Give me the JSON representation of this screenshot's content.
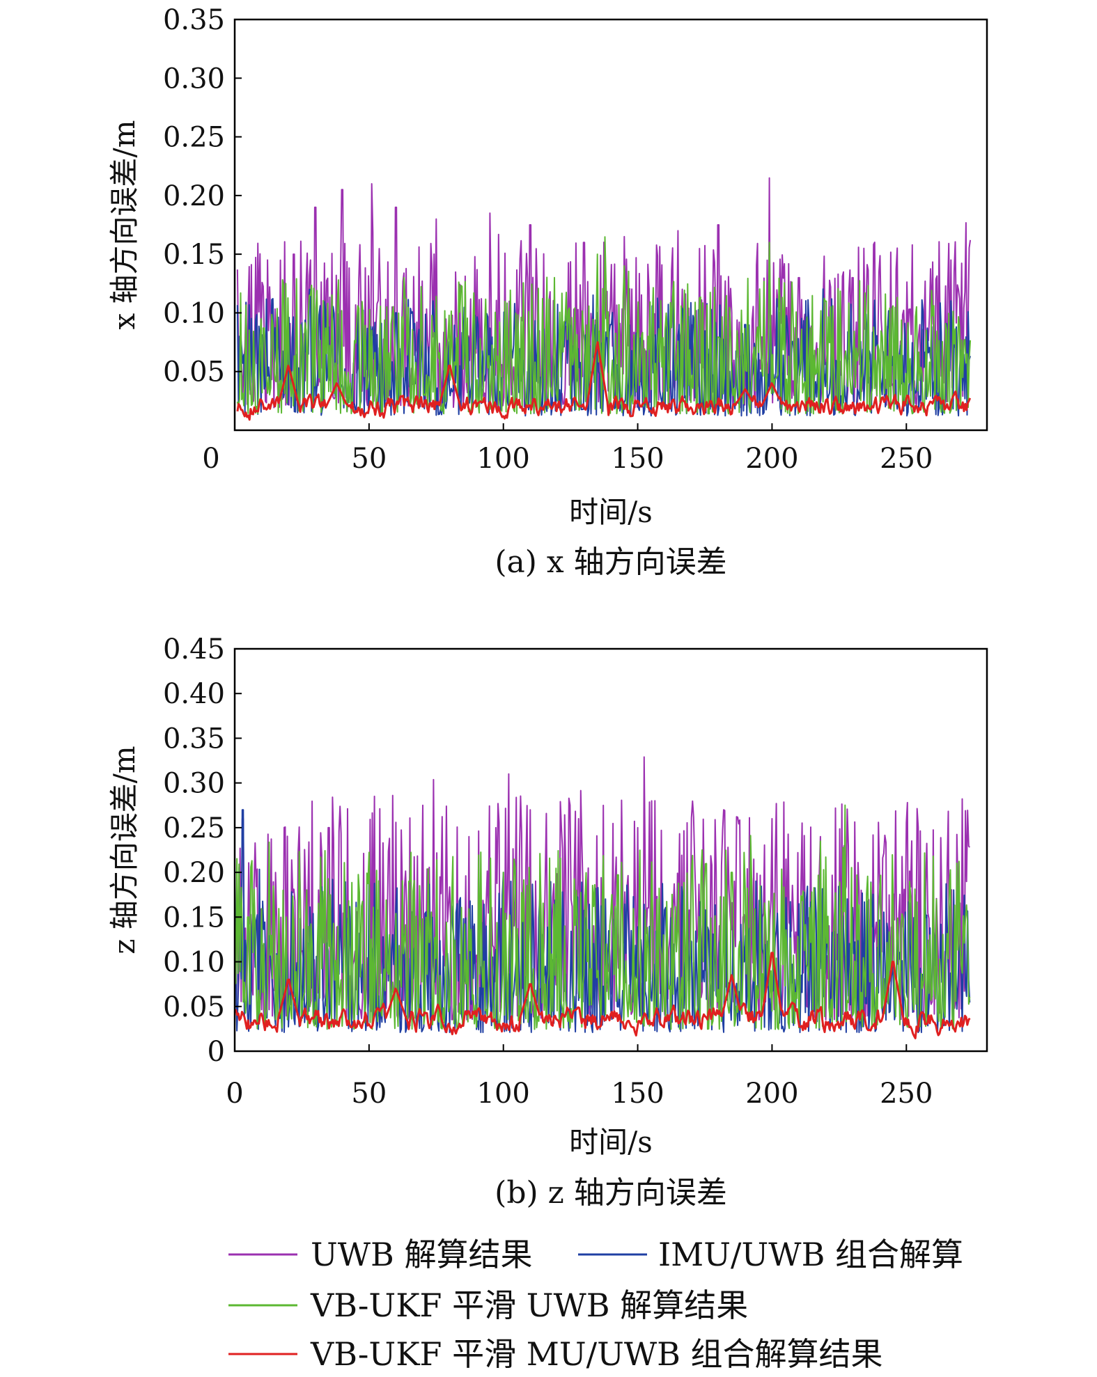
{
  "chart_data": [
    {
      "type": "line",
      "caption": "(a) x 轴方向误差",
      "xlabel": "时间/s",
      "ylabel": "x 轴方向误差/m",
      "xlim": [
        0,
        280
      ],
      "ylim": [
        0,
        0.35
      ],
      "xticks": [
        "0",
        "50",
        "100",
        "150",
        "200",
        "250"
      ],
      "yticks": [
        "0.05",
        "0.10",
        "0.15",
        "0.20",
        "0.25",
        "0.30",
        "0.35"
      ],
      "grid": false,
      "x_range_data": [
        1,
        274
      ],
      "series": [
        {
          "name": "UWB 解算结果",
          "color": "#9b30b0",
          "mean": 0.055,
          "noise": 0.04,
          "peaks": [
            [
              22,
              0.15
            ],
            [
              30,
              0.19
            ],
            [
              40,
              0.205
            ],
            [
              51,
              0.21
            ],
            [
              60,
              0.19
            ],
            [
              75,
              0.18
            ],
            [
              95,
              0.185
            ],
            [
              110,
              0.175
            ],
            [
              130,
              0.16
            ],
            [
              145,
              0.165
            ],
            [
              165,
              0.17
            ],
            [
              180,
              0.175
            ],
            [
              199,
              0.215
            ],
            [
              210,
              0.13
            ],
            [
              230,
              0.13
            ],
            [
              255,
              0.09
            ]
          ]
        },
        {
          "name": "IMU/UWB 组合解算",
          "color": "#1f3fa3",
          "mean": 0.035,
          "noise": 0.03,
          "peaks": [
            [
              2,
              0.08
            ],
            [
              28,
              0.12
            ],
            [
              60,
              0.1
            ],
            [
              140,
              0.09
            ],
            [
              190,
              0.09
            ]
          ]
        },
        {
          "name": "VB-UKF 平滑 UWB 解算结果",
          "color": "#5cb832",
          "mean": 0.04,
          "noise": 0.035,
          "peaks": [
            [
              28,
              0.115
            ],
            [
              63,
              0.13
            ],
            [
              135,
              0.15
            ],
            [
              145,
              0.14
            ],
            [
              199,
              0.16
            ],
            [
              220,
              0.11
            ]
          ]
        },
        {
          "name": "VB-UKF 平滑 MU/UWB 组合解算结果",
          "color": "#e02020",
          "mean": 0.02,
          "noise": 0.008,
          "peaks": [
            [
              20,
              0.055
            ],
            [
              38,
              0.04
            ],
            [
              80,
              0.055
            ],
            [
              135,
              0.075
            ],
            [
              190,
              0.035
            ],
            [
              200,
              0.04
            ]
          ]
        }
      ]
    },
    {
      "type": "line",
      "caption": "(b) z 轴方向误差",
      "xlabel": "时间/s",
      "ylabel": "z 轴方向误差/m",
      "xlim": [
        0,
        280
      ],
      "ylim": [
        0,
        0.45
      ],
      "xticks": [
        "0",
        "50",
        "100",
        "150",
        "200",
        "250"
      ],
      "yticks": [
        "0",
        "0.05",
        "0.10",
        "0.15",
        "0.20",
        "0.25",
        "0.30",
        "0.35",
        "0.40",
        "0.45"
      ],
      "grid": false,
      "x_range_data": [
        0,
        274
      ],
      "series": [
        {
          "name": "UWB 解算结果",
          "color": "#9b30b0",
          "mean": 0.1,
          "noise": 0.07,
          "peaks": [
            [
              3,
              0.26
            ],
            [
              35,
              0.25
            ],
            [
              52,
              0.285
            ],
            [
              70,
              0.275
            ],
            [
              102,
              0.31
            ],
            [
              110,
              0.27
            ],
            [
              128,
              0.26
            ],
            [
              150,
              0.25
            ],
            [
              182,
              0.27
            ],
            [
              200,
              0.26
            ],
            [
              218,
              0.24
            ],
            [
              240,
              0.2
            ]
          ]
        },
        {
          "name": "IMU/UWB 组合解算",
          "color": "#1f3fa3",
          "mean": 0.06,
          "noise": 0.05,
          "peaks": [
            [
              3,
              0.27
            ],
            [
              50,
              0.21
            ],
            [
              100,
              0.2
            ]
          ]
        },
        {
          "name": "VB-UKF 平滑 UWB 解算结果",
          "color": "#5cb832",
          "mean": 0.07,
          "noise": 0.06,
          "peaks": [
            [
              5,
              0.15
            ],
            [
              65,
              0.19
            ],
            [
              100,
              0.2
            ],
            [
              185,
              0.2
            ],
            [
              218,
              0.235
            ],
            [
              240,
              0.175
            ]
          ]
        },
        {
          "name": "VB-UKF 平滑 MU/UWB 组合解算结果",
          "color": "#e02020",
          "mean": 0.035,
          "noise": 0.012,
          "peaks": [
            [
              20,
              0.08
            ],
            [
              60,
              0.07
            ],
            [
              110,
              0.075
            ],
            [
              185,
              0.085
            ],
            [
              200,
              0.11
            ],
            [
              245,
              0.1
            ]
          ]
        }
      ]
    }
  ],
  "legend": {
    "placement": "bottom",
    "entries": [
      {
        "label": "UWB 解算结果",
        "color": "#9b30b0"
      },
      {
        "label": "IMU/UWB 组合解算",
        "color": "#1f3fa3"
      },
      {
        "label": "VB-UKF 平滑 UWB 解算结果",
        "color": "#5cb832"
      },
      {
        "label": "VB-UKF 平滑 MU/UWB 组合解算结果",
        "color": "#e02020"
      }
    ]
  }
}
